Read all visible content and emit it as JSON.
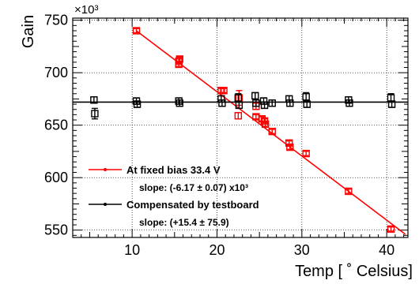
{
  "chart_data": {
    "type": "scatter",
    "xlabel": "Temp [ ˚ Celsius]",
    "ylabel": "Gain",
    "y_multiplier": "×10³",
    "xlim": [
      3,
      42.5
    ],
    "ylim": [
      543,
      752
    ],
    "x_ticks": [
      10,
      20,
      30,
      40
    ],
    "y_ticks": [
      550,
      600,
      650,
      700,
      750
    ],
    "grid": "dotted at major ticks",
    "legend_position": "bottom-left",
    "series": [
      {
        "name": "At fixed bias 33.4 V",
        "color": "#ff0000",
        "marker": "open-square",
        "fit_label": "slope: (-6.17 ± 0.07) x10³",
        "fit": {
          "x": [
            10.5,
            42.2
          ],
          "y": [
            740,
            546
          ]
        },
        "points": [
          {
            "x": 10.5,
            "y": 740,
            "err": 2
          },
          {
            "x": 15.5,
            "y": 708,
            "err": 2
          },
          {
            "x": 15.5,
            "y": 711,
            "err": 2
          },
          {
            "x": 15.6,
            "y": 713,
            "err": 2
          },
          {
            "x": 20.5,
            "y": 683,
            "err": 2
          },
          {
            "x": 20.8,
            "y": 683,
            "err": 2
          },
          {
            "x": 22.5,
            "y": 659,
            "err": 3
          },
          {
            "x": 22.6,
            "y": 676,
            "err": 7
          },
          {
            "x": 24.6,
            "y": 668,
            "err": 3
          },
          {
            "x": 24.6,
            "y": 658,
            "err": 2
          },
          {
            "x": 25.3,
            "y": 656,
            "err": 2
          },
          {
            "x": 25.6,
            "y": 654,
            "err": 2
          },
          {
            "x": 25.7,
            "y": 651,
            "err": 2
          },
          {
            "x": 26.5,
            "y": 644,
            "err": 2
          },
          {
            "x": 28.5,
            "y": 633,
            "err": 2
          },
          {
            "x": 28.6,
            "y": 629,
            "err": 2
          },
          {
            "x": 30.5,
            "y": 623,
            "err": 2
          },
          {
            "x": 35.5,
            "y": 587,
            "err": 2
          },
          {
            "x": 40.5,
            "y": 551,
            "err": 2
          }
        ]
      },
      {
        "name": "Compensated by testboard",
        "color": "#000000",
        "marker": "open-square",
        "fit_label": "slope: (+15.4 ± 75.9)",
        "fit": {
          "x": [
            3,
            42.5
          ],
          "y": [
            672,
            672
          ]
        },
        "points": [
          {
            "x": 5.5,
            "y": 674,
            "err": 3
          },
          {
            "x": 5.6,
            "y": 661,
            "err": 5
          },
          {
            "x": 10.5,
            "y": 673,
            "err": 3
          },
          {
            "x": 10.6,
            "y": 670,
            "err": 3
          },
          {
            "x": 15.5,
            "y": 673,
            "err": 3
          },
          {
            "x": 15.6,
            "y": 671,
            "err": 3
          },
          {
            "x": 20.5,
            "y": 675,
            "err": 3
          },
          {
            "x": 20.6,
            "y": 671,
            "err": 3
          },
          {
            "x": 22.5,
            "y": 676,
            "err": 4
          },
          {
            "x": 22.6,
            "y": 669,
            "err": 3
          },
          {
            "x": 24.5,
            "y": 678,
            "err": 3
          },
          {
            "x": 24.6,
            "y": 671,
            "err": 3
          },
          {
            "x": 25.5,
            "y": 673,
            "err": 3
          },
          {
            "x": 25.6,
            "y": 669,
            "err": 3
          },
          {
            "x": 26.5,
            "y": 671,
            "err": 3
          },
          {
            "x": 28.5,
            "y": 675,
            "err": 3
          },
          {
            "x": 28.6,
            "y": 671,
            "err": 3
          },
          {
            "x": 30.5,
            "y": 677,
            "err": 4
          },
          {
            "x": 30.6,
            "y": 670,
            "err": 3
          },
          {
            "x": 35.5,
            "y": 674,
            "err": 3
          },
          {
            "x": 35.6,
            "y": 671,
            "err": 3
          },
          {
            "x": 40.5,
            "y": 676,
            "err": 4
          },
          {
            "x": 40.6,
            "y": 670,
            "err": 3
          }
        ]
      }
    ]
  }
}
